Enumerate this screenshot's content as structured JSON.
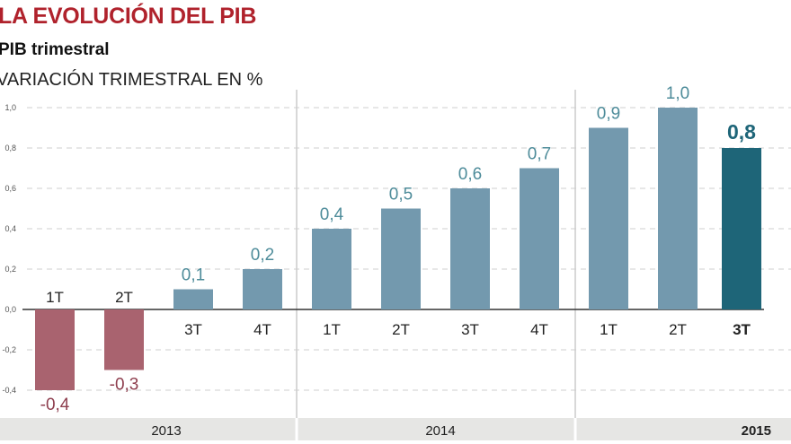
{
  "title": "LA EVOLUCIÓN DEL PIB",
  "subtitle": "PIB trimestral",
  "unit_label": "VARIACIÓN TRIMESTRAL EN %",
  "colors": {
    "negative": "#a9636f",
    "positive": "#7399ae",
    "highlight": "#1e6578",
    "neg_label": "#8e3e4e",
    "pos_label": "#4e8c9a"
  },
  "chart_data": {
    "type": "bar",
    "title": "LA EVOLUCIÓN DEL PIB",
    "ylabel": "VARIACIÓN TRIMESTRAL EN %",
    "ylim": [
      -0.4,
      1.0
    ],
    "yticks": [
      1.0,
      0.8,
      0.6,
      0.4,
      0.2,
      0.0,
      -0.2,
      -0.4
    ],
    "ytick_labels": [
      "1,0",
      "0,8",
      "0,6",
      "0,4",
      "0,2",
      "0,0",
      "-0,2",
      "-0,4"
    ],
    "grid": true,
    "categories": [
      "1T",
      "2T",
      "3T",
      "4T",
      "1T",
      "2T",
      "3T",
      "4T",
      "1T",
      "2T",
      "3T"
    ],
    "years": [
      {
        "label": "2013",
        "count": 4
      },
      {
        "label": "2014",
        "count": 4
      },
      {
        "label": "2015",
        "count": 3
      }
    ],
    "values": [
      -0.4,
      -0.3,
      0.1,
      0.2,
      0.4,
      0.5,
      0.6,
      0.7,
      0.9,
      1.0,
      0.8
    ],
    "value_labels": [
      "-0,4",
      "-0,3",
      "0,1",
      "0,2",
      "0,4",
      "0,5",
      "0,6",
      "0,7",
      "0,9",
      "1,0",
      "0,8"
    ],
    "highlight_index": 10
  }
}
